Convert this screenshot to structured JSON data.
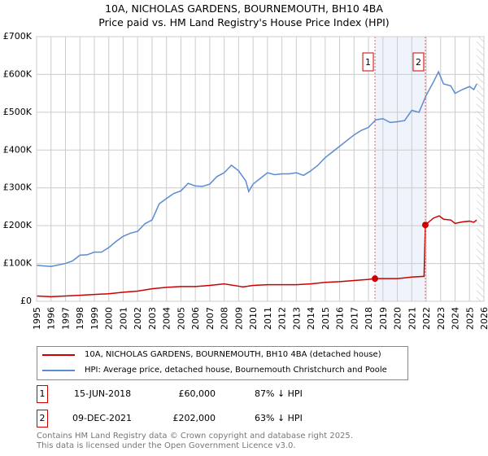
{
  "title": "10A, NICHOLAS GARDENS, BOURNEMOUTH, BH10 4BA",
  "subtitle": "Price paid vs. HM Land Registry's House Price Index (HPI)",
  "chart_data": {
    "type": "line",
    "xlim": [
      1995,
      2026
    ],
    "ylim": [
      0,
      700000
    ],
    "x_ticks": [
      "1995",
      "1996",
      "1997",
      "1998",
      "1999",
      "2000",
      "2001",
      "2002",
      "2003",
      "2004",
      "2005",
      "2006",
      "2007",
      "2008",
      "2009",
      "2010",
      "2011",
      "2012",
      "2013",
      "2014",
      "2015",
      "2016",
      "2017",
      "2018",
      "2019",
      "2020",
      "2021",
      "2022",
      "2023",
      "2024",
      "2025",
      "2026"
    ],
    "y_ticks": [
      {
        "v": 0,
        "label": "£0"
      },
      {
        "v": 100000,
        "label": "£100K"
      },
      {
        "v": 200000,
        "label": "£200K"
      },
      {
        "v": 300000,
        "label": "£300K"
      },
      {
        "v": 400000,
        "label": "£400K"
      },
      {
        "v": 500000,
        "label": "£500K"
      },
      {
        "v": 600000,
        "label": "£600K"
      },
      {
        "v": 700000,
        "label": "£700K"
      }
    ],
    "grid": true,
    "shaded_range": [
      2018.45,
      2021.94
    ],
    "hatched_from": 2025.5,
    "series": [
      {
        "name": "10A, NICHOLAS GARDENS, BOURNEMOUTH, BH10 4BA (detached house)",
        "color": "#cc0000",
        "points": [
          [
            1995,
            14
          ],
          [
            1996,
            12
          ],
          [
            1997,
            14
          ],
          [
            1998,
            16
          ],
          [
            1999,
            18
          ],
          [
            2000,
            20
          ],
          [
            2001,
            24
          ],
          [
            2002,
            27
          ],
          [
            2003,
            33
          ],
          [
            2004,
            37
          ],
          [
            2005,
            39
          ],
          [
            2006,
            39
          ],
          [
            2007,
            42
          ],
          [
            2008,
            46
          ],
          [
            2009,
            40
          ],
          [
            2009.3,
            38
          ],
          [
            2010,
            42
          ],
          [
            2011,
            44
          ],
          [
            2012,
            44
          ],
          [
            2013,
            44
          ],
          [
            2014,
            46
          ],
          [
            2015,
            50
          ],
          [
            2016,
            52
          ],
          [
            2017,
            55
          ],
          [
            2018,
            58
          ],
          [
            2018.45,
            60
          ],
          [
            2019,
            60
          ],
          [
            2020,
            60
          ],
          [
            2020.5,
            62
          ],
          [
            2021,
            64
          ],
          [
            2021.85,
            66
          ],
          [
            2021.94,
            202
          ],
          [
            2022.5,
            220
          ],
          [
            2022.9,
            226
          ],
          [
            2023.2,
            217
          ],
          [
            2023.7,
            215
          ],
          [
            2024,
            206
          ],
          [
            2024.5,
            210
          ],
          [
            2025,
            212
          ],
          [
            2025.3,
            209
          ],
          [
            2025.5,
            215
          ]
        ]
      },
      {
        "name": "HPI: Average price, detached house, Bournemouth Christchurch and Poole",
        "color": "#5b8bd0",
        "points": [
          [
            1995,
            95
          ],
          [
            1996,
            92
          ],
          [
            1997,
            100
          ],
          [
            1997.5,
            107
          ],
          [
            1998,
            122
          ],
          [
            1998.5,
            123
          ],
          [
            1999,
            130
          ],
          [
            1999.5,
            130
          ],
          [
            2000,
            142
          ],
          [
            2000.5,
            158
          ],
          [
            2001,
            172
          ],
          [
            2001.5,
            180
          ],
          [
            2002,
            185
          ],
          [
            2002.5,
            205
          ],
          [
            2003,
            215
          ],
          [
            2003.5,
            258
          ],
          [
            2004,
            272
          ],
          [
            2004.5,
            285
          ],
          [
            2005,
            292
          ],
          [
            2005.5,
            312
          ],
          [
            2006,
            305
          ],
          [
            2006.5,
            304
          ],
          [
            2007,
            310
          ],
          [
            2007.5,
            330
          ],
          [
            2008,
            340
          ],
          [
            2008.5,
            360
          ],
          [
            2009,
            345
          ],
          [
            2009.5,
            318
          ],
          [
            2009.7,
            290
          ],
          [
            2010,
            310
          ],
          [
            2010.5,
            325
          ],
          [
            2011,
            340
          ],
          [
            2011.5,
            335
          ],
          [
            2012,
            337
          ],
          [
            2012.5,
            337
          ],
          [
            2013,
            340
          ],
          [
            2013.5,
            333
          ],
          [
            2014,
            345
          ],
          [
            2014.5,
            360
          ],
          [
            2015,
            380
          ],
          [
            2015.5,
            395
          ],
          [
            2016,
            410
          ],
          [
            2016.5,
            425
          ],
          [
            2017,
            440
          ],
          [
            2017.5,
            452
          ],
          [
            2018,
            460
          ],
          [
            2018.5,
            480
          ],
          [
            2019,
            483
          ],
          [
            2019.5,
            473
          ],
          [
            2020,
            475
          ],
          [
            2020.5,
            478
          ],
          [
            2021,
            505
          ],
          [
            2021.5,
            500
          ],
          [
            2022,
            545
          ],
          [
            2022.5,
            580
          ],
          [
            2022.85,
            607
          ],
          [
            2023.2,
            575
          ],
          [
            2023.7,
            570
          ],
          [
            2024,
            550
          ],
          [
            2024.5,
            560
          ],
          [
            2025,
            568
          ],
          [
            2025.3,
            560
          ],
          [
            2025.5,
            575
          ]
        ]
      }
    ],
    "markers": [
      {
        "label": "1",
        "x": 2018.45,
        "y": 60
      },
      {
        "label": "2",
        "x": 2021.94,
        "y": 202
      }
    ],
    "value_unit": "£K"
  },
  "transactions": [
    {
      "num": "1",
      "date": "15-JUN-2018",
      "price": "£60,000",
      "hpi": "87% ↓ HPI"
    },
    {
      "num": "2",
      "date": "09-DEC-2021",
      "price": "£202,000",
      "hpi": "63% ↓ HPI"
    }
  ],
  "footer": {
    "line1": "Contains HM Land Registry data © Crown copyright and database right 2025.",
    "line2": "This data is licensed under the Open Government Licence v3.0."
  }
}
